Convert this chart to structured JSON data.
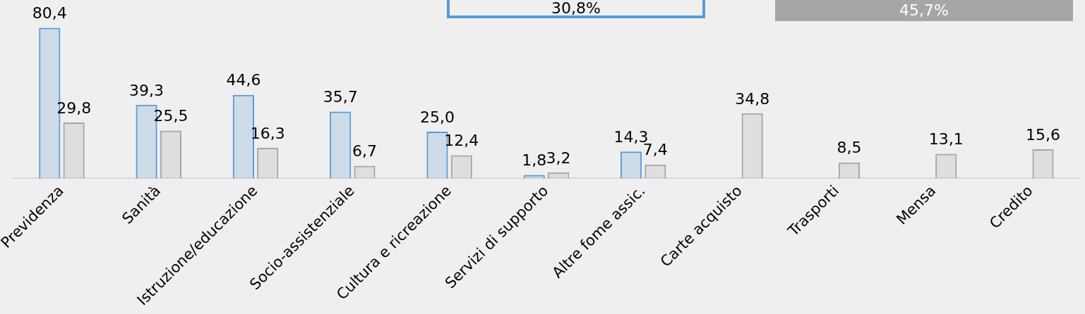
{
  "chart_data": {
    "type": "bar",
    "categories": [
      "Previdenza",
      "Sanità",
      "Istruzione/educazione",
      "Socio-assistenziale",
      "Cultura e ricreazione",
      "Servizi di supporto",
      "Altre fome assic.",
      "Carte acquisto",
      "Trasporti",
      "Mensa",
      "Credito"
    ],
    "series": [
      {
        "color": "#5b9bd5",
        "values": [
          80.4,
          39.3,
          44.6,
          35.7,
          25.0,
          1.8,
          14.3,
          null,
          null,
          null,
          null
        ],
        "value_labels": [
          "80,4",
          "39,3",
          "44,6",
          "35,7",
          "25,0",
          "1,8",
          "14,3",
          null,
          null,
          null,
          null
        ]
      },
      {
        "color": "#a6a6a6",
        "values": [
          29.8,
          25.5,
          16.3,
          6.7,
          12.4,
          3.2,
          7.4,
          34.8,
          8.5,
          13.1,
          15.6
        ],
        "value_labels": [
          "29,8",
          "25,5",
          "16,3",
          "6,7",
          "12,4",
          "3,2",
          "7,4",
          "34,8",
          "8,5",
          "13,1",
          "15,6"
        ]
      }
    ],
    "grid": false,
    "legend": false,
    "annotations": [
      "30,8%",
      "45,7%"
    ]
  }
}
